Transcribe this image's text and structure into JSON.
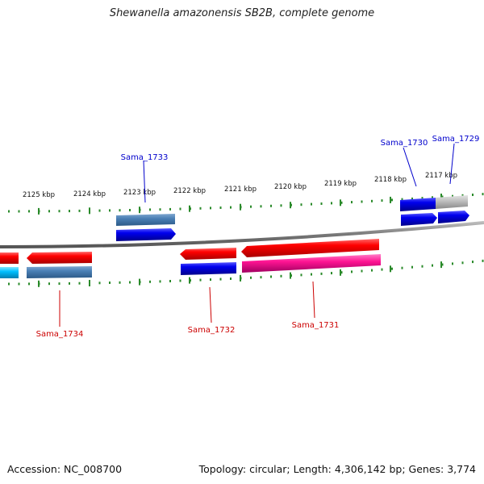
{
  "title": "Shewanella amazonensis SB2B, complete genome",
  "footer": {
    "accession": "Accession: NC_008700",
    "summary": "Topology: circular; Length: 4,306,142 bp; Genes: 3,774"
  },
  "colors": {
    "backbone": "#8a8a8a",
    "ticks": "#2a8a2a",
    "label_forward": "#0000cc",
    "label_reverse": "#cc0000"
  },
  "ticks": [
    "2125 kbp",
    "2124 kbp",
    "2123 kbp",
    "2122 kbp",
    "2121 kbp",
    "2120 kbp",
    "2119 kbp",
    "2118 kbp",
    "2117 kbp"
  ],
  "gene_labels": [
    {
      "id": "label-sama-1733",
      "text": "Sama_1733",
      "color": "#0000cc"
    },
    {
      "id": "label-sama-1730",
      "text": "Sama_1730",
      "color": "#0000cc"
    },
    {
      "id": "label-sama-1729",
      "text": "Sama_1729",
      "color": "#0000cc"
    },
    {
      "id": "label-sama-1734",
      "text": "Sama_1734",
      "color": "#cc0000"
    },
    {
      "id": "label-sama-1732",
      "text": "Sama_1732",
      "color": "#cc0000"
    },
    {
      "id": "label-sama-1731",
      "text": "Sama_1731",
      "color": "#cc0000"
    }
  ]
}
